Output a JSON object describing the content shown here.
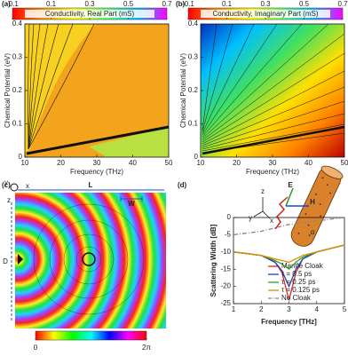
{
  "chart_data": [
    {
      "type": "heatmap",
      "panel": "(a)",
      "title": "Conductivity, Real Part (mS)",
      "x_label": "Frequency (THz)",
      "y_label": "Chemical Potential (eV)",
      "xlim": [
        10,
        50
      ],
      "xticks": [
        10,
        20,
        30,
        40,
        50
      ],
      "ylim": [
        0,
        0.4
      ],
      "yticks": [
        0,
        0.1,
        0.2,
        0.3,
        0.4
      ],
      "clim": [
        -0.1,
        0.7
      ],
      "cticks": [
        -0.1,
        0.1,
        0.3,
        0.5,
        0.7
      ],
      "colormap": "jet"
    },
    {
      "type": "heatmap",
      "panel": "(b)",
      "title": "Conductivity, Imaginary Part (mS)",
      "x_label": "Frequency (THz)",
      "y_label": "Chemical Potential (eV)",
      "xlim": [
        10,
        50
      ],
      "xticks": [
        10,
        20,
        30,
        40,
        50
      ],
      "ylim": [
        0,
        0.4
      ],
      "yticks": [
        0,
        0.1,
        0.2,
        0.3,
        0.4
      ],
      "clim": [
        -0.1,
        0.7
      ],
      "cticks": [
        -0.1,
        0.1,
        0.3,
        0.5,
        0.7
      ],
      "colormap": "jet"
    },
    {
      "type": "field",
      "panel": "(c)",
      "annotations": [
        "L",
        "W",
        "D",
        "x",
        "y",
        "z"
      ],
      "clim": [
        0,
        6.283
      ],
      "cticks": [
        0,
        {
          "value": 6.283,
          "label": "2π"
        }
      ],
      "colormap": "hsv"
    },
    {
      "type": "line",
      "panel": "(d)",
      "x_label": "Frequency [THz]",
      "y_label": "Scattering Width [dB]",
      "x": [
        1,
        1.5,
        2,
        2.5,
        2.75,
        3,
        3.25,
        3.5,
        4,
        4.5,
        5
      ],
      "xlim": [
        1,
        5
      ],
      "xticks": [
        1,
        2,
        3,
        4,
        5
      ],
      "ylim": [
        -25,
        0
      ],
      "yticks": [
        -25,
        -20,
        -15,
        -10,
        -5,
        0
      ],
      "series": [
        {
          "name": "Mantle Cloak",
          "color": "#d62728",
          "values": [
            -10,
            -10.5,
            -11,
            -13,
            -16,
            -24,
            -16,
            -12,
            -10,
            -9,
            -8
          ]
        },
        {
          "name": "τ = 0.5 ps",
          "color": "#2040c0",
          "values": [
            -10,
            -10.5,
            -11,
            -13,
            -15.5,
            -20,
            -15,
            -12,
            -10,
            -9,
            -8
          ]
        },
        {
          "name": "τ = 0.25 ps",
          "color": "#2ca02c",
          "values": [
            -10,
            -10.5,
            -11,
            -12.5,
            -13.5,
            -15,
            -13,
            -11.5,
            -10,
            -9,
            -8
          ]
        },
        {
          "name": "τ = 0.125 ps",
          "color": "#e08a00",
          "values": [
            -10,
            -10.5,
            -11,
            -12,
            -12.5,
            -13,
            -12,
            -11,
            -10,
            -9,
            -8
          ]
        },
        {
          "name": "No Cloak",
          "color": "#888888",
          "linestyle": "dashdot",
          "values": [
            -5,
            -4.5,
            -4,
            -3,
            -2.5,
            -2,
            -1.8,
            -1.5,
            -1,
            -0.5,
            0
          ]
        }
      ],
      "annotations": [
        "E",
        "H",
        "α",
        "x",
        "y",
        "z"
      ]
    }
  ]
}
